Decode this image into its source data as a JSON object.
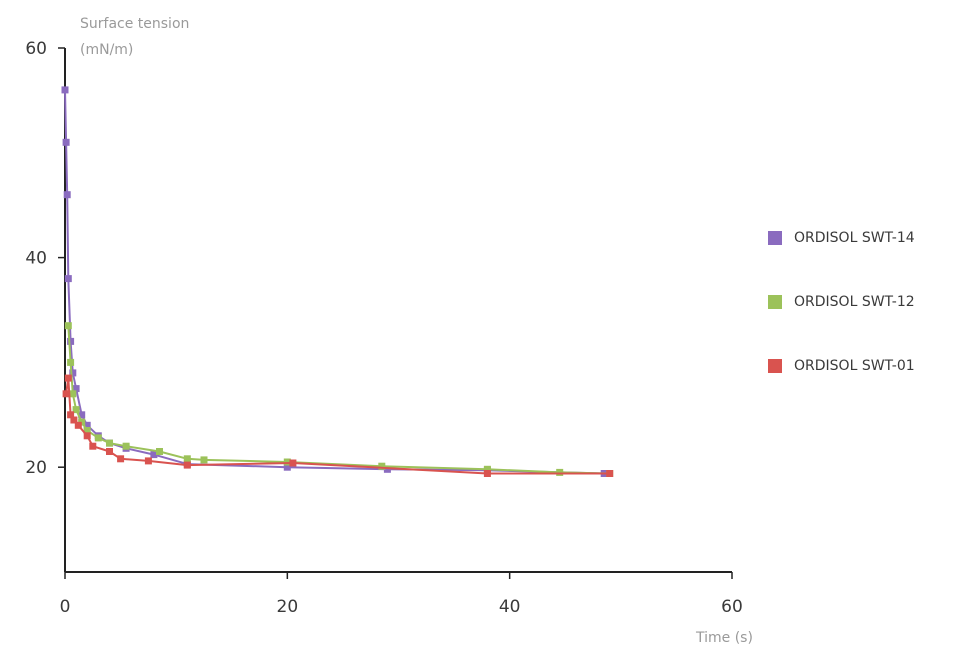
{
  "chart_data": {
    "type": "line",
    "ylabel_line1": "Surface tension",
    "ylabel_line2": "(mN/m)",
    "xlabel": "Time (s)",
    "xlim": [
      0,
      60
    ],
    "ylim": [
      10,
      60
    ],
    "xticks": [
      "0",
      "20",
      "40",
      "60"
    ],
    "yticks": [
      "20",
      "40",
      "60"
    ],
    "grid": false,
    "legend_position": "right",
    "series": [
      {
        "name": "ORDISOL SWT-14",
        "color": "#8a6bbf",
        "x": [
          0,
          0.1,
          0.2,
          0.3,
          0.5,
          0.7,
          1.0,
          1.5,
          2.0,
          3.0,
          4.0,
          5.5,
          8.0,
          11.0,
          20.0,
          29.0,
          38.0,
          48.5
        ],
        "y": [
          56,
          51,
          46,
          38,
          32,
          29,
          27.5,
          25,
          24,
          23,
          22.3,
          21.8,
          21.2,
          20.3,
          20.0,
          19.8,
          19.7,
          19.4
        ]
      },
      {
        "name": "ORDISOL SWT-12",
        "color": "#9cc25a",
        "x": [
          0.3,
          0.5,
          0.7,
          1.0,
          1.5,
          2.0,
          3.0,
          4.0,
          5.5,
          8.5,
          11.0,
          12.5,
          20.0,
          28.5,
          38.0,
          44.5,
          49.0
        ],
        "y": [
          33.5,
          30,
          27,
          25.5,
          24.3,
          23.5,
          22.8,
          22.3,
          22.0,
          21.5,
          20.8,
          20.7,
          20.5,
          20.1,
          19.8,
          19.5,
          19.4
        ]
      },
      {
        "name": "ORDISOL SWT-01",
        "color": "#d9534f",
        "x": [
          0.1,
          0.3,
          0.5,
          0.8,
          1.2,
          2.0,
          2.5,
          4.0,
          5.0,
          7.5,
          11.0,
          20.5,
          38.0,
          49.0
        ],
        "y": [
          27.0,
          28.5,
          25.0,
          24.5,
          24.0,
          23.0,
          22.0,
          21.5,
          20.8,
          20.6,
          20.2,
          20.4,
          19.4,
          19.4
        ]
      }
    ]
  }
}
